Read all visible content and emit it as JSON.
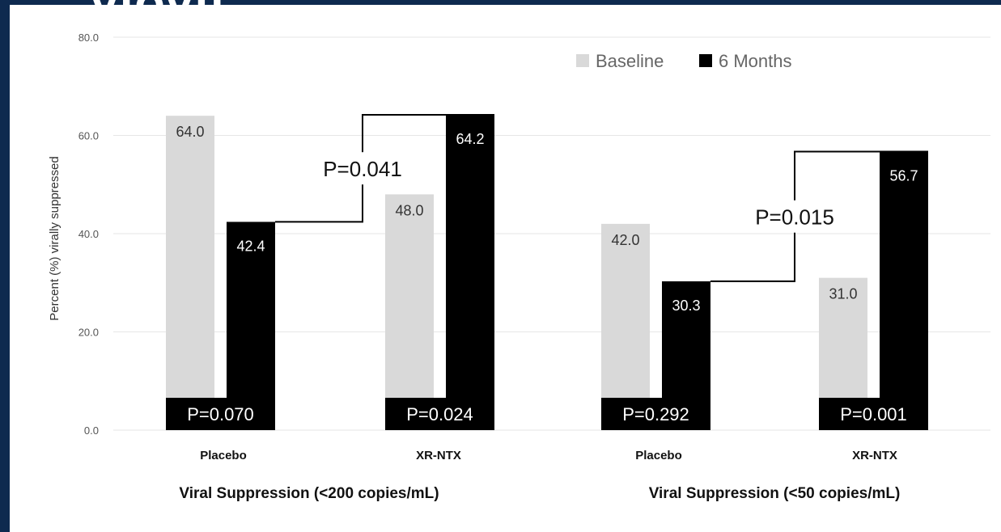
{
  "header_fragment": "VIOVU",
  "chart_data": {
    "type": "bar",
    "ylabel": "Percent (%) virally suppressed",
    "ylim": [
      0,
      80
    ],
    "yticks": [
      "0.0",
      "20.0",
      "40.0",
      "60.0",
      "80.0"
    ],
    "grid": true,
    "legend_position": "top-right",
    "series_colors": {
      "baseline": "#d9d9d9",
      "months6": "#000000"
    },
    "legend": [
      {
        "label": "Baseline",
        "color": "#d9d9d9"
      },
      {
        "label": "6 Months",
        "color": "#000000"
      }
    ],
    "groups": [
      {
        "title": "Viral Suppression (<200 copies/mL)",
        "bracket_p": "P=0.041",
        "categories": [
          {
            "name": "Placebo",
            "baseline": 64.0,
            "baseline_label": "64.0",
            "months6": 42.4,
            "months6_label": "42.4",
            "p": "P=0.070"
          },
          {
            "name": "XR-NTX",
            "baseline": 48.0,
            "baseline_label": "48.0",
            "months6": 64.2,
            "months6_label": "64.2",
            "p": "P=0.024"
          }
        ]
      },
      {
        "title": "Viral Suppression (<50 copies/mL)",
        "bracket_p": "P=0.015",
        "categories": [
          {
            "name": "Placebo",
            "baseline": 42.0,
            "baseline_label": "42.0",
            "months6": 30.3,
            "months6_label": "30.3",
            "p": "P=0.292"
          },
          {
            "name": "XR-NTX",
            "baseline": 31.0,
            "baseline_label": "31.0",
            "months6": 56.7,
            "months6_label": "56.7",
            "p": "P=0.001"
          }
        ]
      }
    ]
  }
}
